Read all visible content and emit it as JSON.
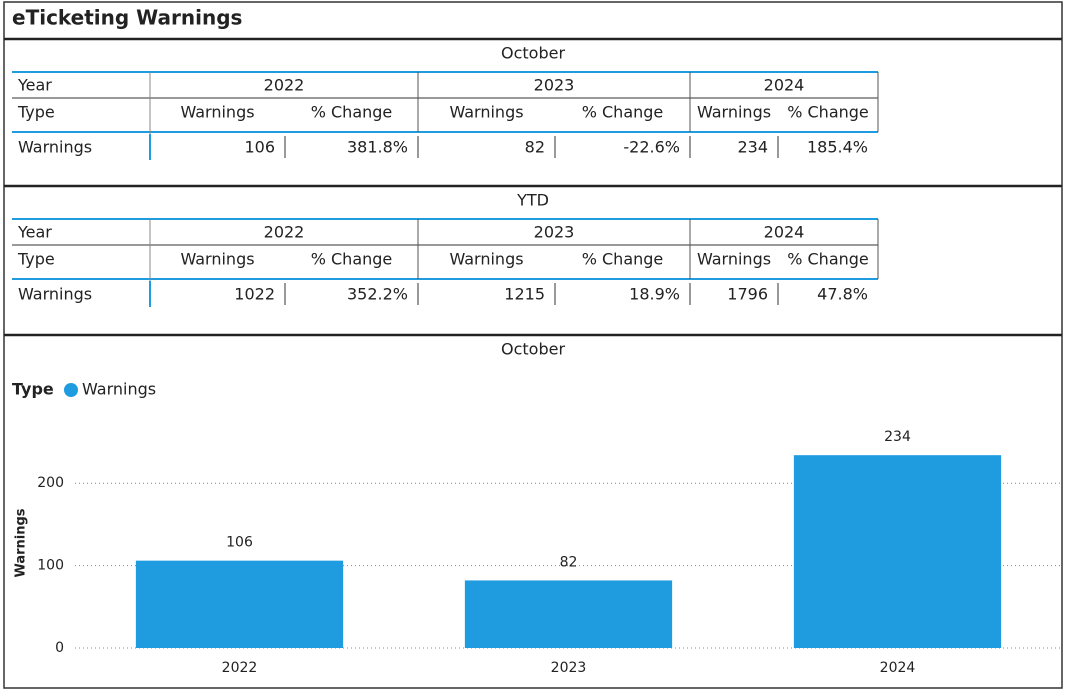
{
  "title": "eTicketing Warnings",
  "tables": [
    {
      "title": "October",
      "year_label": "Year",
      "years": [
        "2022",
        "2023",
        "2024"
      ],
      "type_label": "Type",
      "columns": [
        "Warnings",
        "% Change",
        "Warnings",
        "% Change",
        "Warnings",
        "% Change"
      ],
      "row": {
        "label": "Warnings",
        "cells": [
          "106",
          "381.8%",
          "82",
          "-22.6%",
          "234",
          "185.4%"
        ]
      }
    },
    {
      "title": "YTD",
      "year_label": "Year",
      "years": [
        "2022",
        "2023",
        "2024"
      ],
      "type_label": "Type",
      "columns": [
        "Warnings",
        "% Change",
        "Warnings",
        "% Change",
        "Warnings",
        "% Change"
      ],
      "row": {
        "label": "Warnings",
        "cells": [
          "1022",
          "352.2%",
          "1215",
          "18.9%",
          "1796",
          "47.8%"
        ]
      }
    }
  ],
  "chart_data": {
    "type": "bar",
    "title": "October",
    "legend_title": "Type",
    "ylabel": "Warnings",
    "categories": [
      "2022",
      "2023",
      "2024"
    ],
    "series": [
      {
        "name": "Warnings",
        "color": "#1f9be0",
        "values": [
          106,
          82,
          234
        ]
      }
    ],
    "ylim": [
      0,
      250
    ],
    "yticks": [
      0,
      100,
      200
    ],
    "grid": true
  }
}
